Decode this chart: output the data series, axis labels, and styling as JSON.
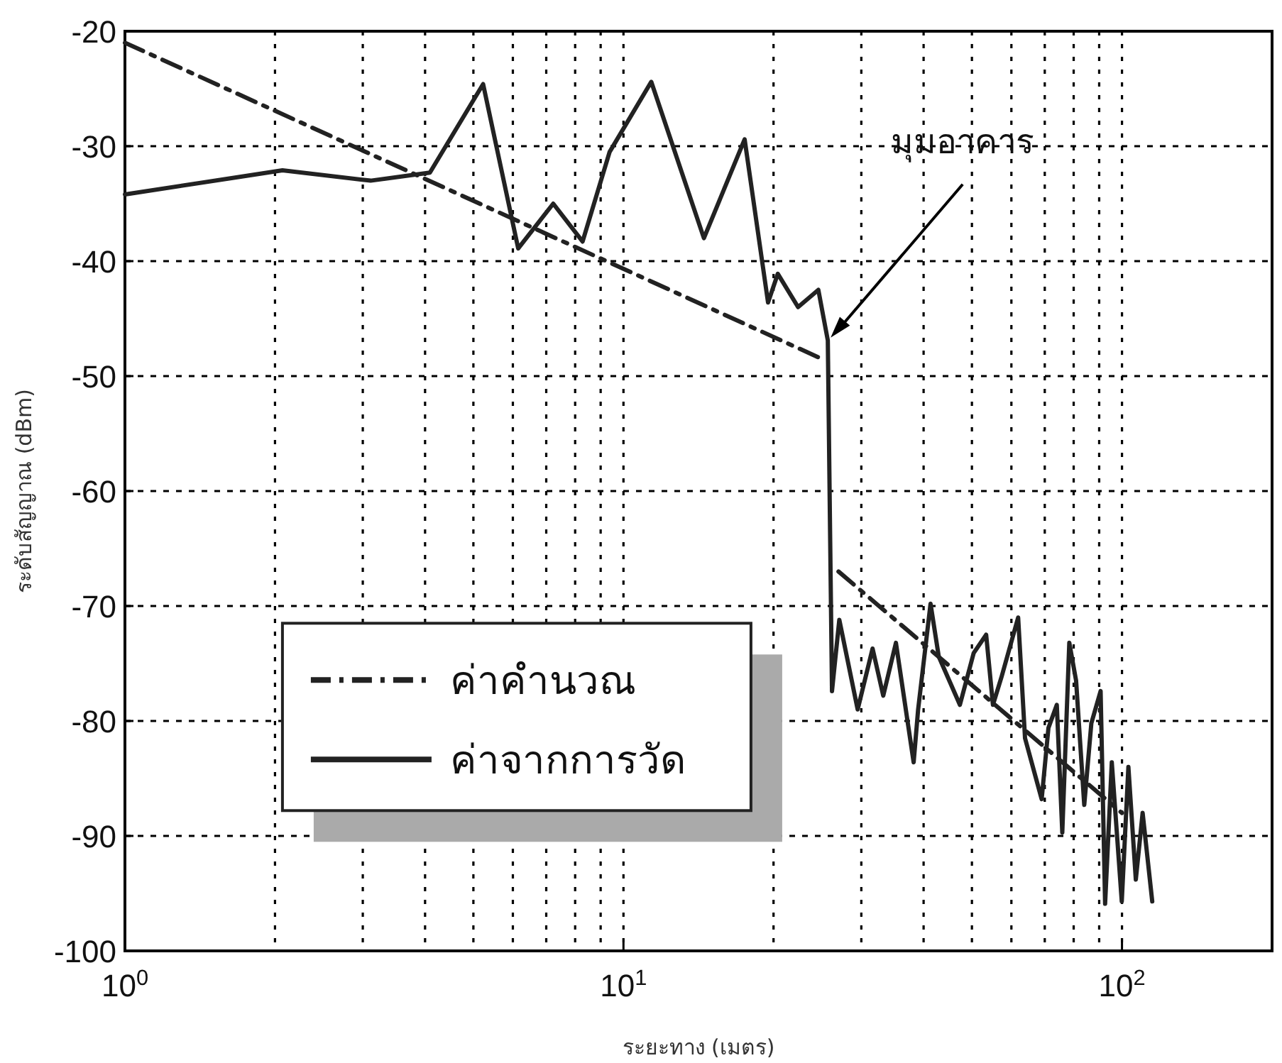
{
  "chart_data": {
    "type": "line",
    "xlabel": "ระยะทาง (เมตร)",
    "ylabel": "ระดับสัญญาณ (dBm)",
    "log": "x",
    "grid": true,
    "legend": "bottom left",
    "marker": "none",
    "xlim": [
      1,
      200
    ],
    "ylim": [
      -100,
      -20
    ],
    "xticks": [
      {
        "value": 1,
        "label": "10$^{0}$"
      },
      {
        "value": 10,
        "label": "10$^{1}$"
      },
      {
        "value": 100,
        "label": "10$^{2}$"
      }
    ],
    "yticks": [
      -100,
      -90,
      -80,
      -70,
      -60,
      -50,
      -40,
      -30,
      -20
    ],
    "annotations": [
      {
        "text": "มุมอาคาร",
        "x": 25.7,
        "y": -46.9
      }
    ],
    "series": [
      {
        "name": "ค่าคำนวณ",
        "color": "#222222",
        "line_style": "dashed",
        "x": [
          1,
          25,
          26,
          27,
          100
        ],
        "values": [
          -21,
          -48.5,
          null,
          -67,
          -88
        ]
      },
      {
        "name": "ค่าจากการวัด",
        "color": "#222222",
        "line_style": "solid",
        "x": [
          1,
          2.07,
          3.11,
          4.09,
          5.23,
          6.15,
          7.23,
          8.28,
          9.38,
          11.37,
          14.5,
          17.5,
          19.5,
          20.4,
          22.4,
          24.6,
          25.7,
          26,
          26.2,
          27.1,
          29.5,
          31.6,
          33.2,
          35.2,
          38.2,
          39,
          41.3,
          42.9,
          47.3,
          50.4,
          53.4,
          55.1,
          57.3,
          61.9,
          63.9,
          69,
          71.2,
          74,
          75.9,
          78.4,
          80.9,
          84,
          86.8,
          90.6,
          92.5,
          95.4,
          99.9,
          103,
          106.6,
          110,
          115
        ],
        "values": [
          -34.2,
          -32.1,
          -33,
          -32.3,
          -24.6,
          -38.9,
          -35,
          -38.3,
          -30.5,
          -24.4,
          -38,
          -29.4,
          -43.6,
          -41.1,
          -44,
          -42.5,
          -46.9,
          -65.4,
          -77.4,
          -71.2,
          -79,
          -73.7,
          -77.8,
          -73.2,
          -83.6,
          -79,
          -69.8,
          -74.4,
          -78.6,
          -74.1,
          -72.5,
          -78.6,
          -76.2,
          -71,
          -81.5,
          -86.8,
          -80.6,
          -78.6,
          -89.7,
          -73.2,
          -76.5,
          -87.3,
          -80.2,
          -77.4,
          -95.9,
          -83.6,
          -95.7,
          -84,
          -93.8,
          -88,
          -95.7
        ]
      }
    ]
  }
}
